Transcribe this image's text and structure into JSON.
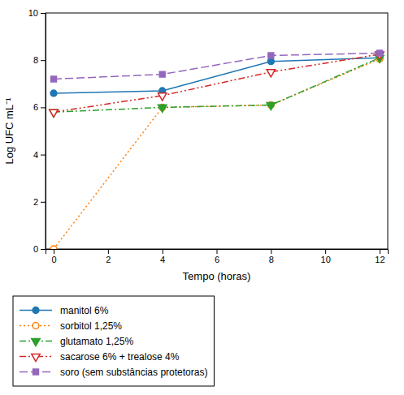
{
  "chart_data": {
    "type": "line",
    "xlabel": "Tempo (horas)",
    "ylabel": "Log UFC mL⁻¹",
    "x": [
      0,
      4,
      8,
      12
    ],
    "series": [
      {
        "name": "manitol 6%",
        "values": [
          6.6,
          6.7,
          7.95,
          8.1
        ],
        "marker": "circle",
        "line_style": "solid"
      },
      {
        "name": "sorbitol 1,25%",
        "values": [
          0,
          6.0,
          6.1,
          8.05
        ],
        "marker": "circle-open",
        "line_style": "dotted"
      },
      {
        "name": "glutamato 1,25%",
        "values": [
          5.8,
          6.0,
          6.1,
          8.1
        ],
        "marker": "triangle-down",
        "line_style": "dashdot"
      },
      {
        "name": "sacarose 6% + trealose 4%",
        "values": [
          5.8,
          6.5,
          7.5,
          8.25
        ],
        "marker": "triangle-down-open",
        "line_style": "dashdotdot"
      },
      {
        "name": "soro (sem substâncias protetoras)",
        "values": [
          7.2,
          7.4,
          8.2,
          8.3
        ],
        "marker": "square",
        "line_style": "dashed"
      }
    ],
    "xlim": [
      -0.3,
      12.3
    ],
    "ylim": [
      0,
      10
    ],
    "xticks": [
      0,
      2,
      4,
      6,
      8,
      10,
      12
    ],
    "yticks": [
      0,
      2,
      4,
      6,
      8,
      10
    ],
    "grid": false,
    "legend": "bottom"
  }
}
